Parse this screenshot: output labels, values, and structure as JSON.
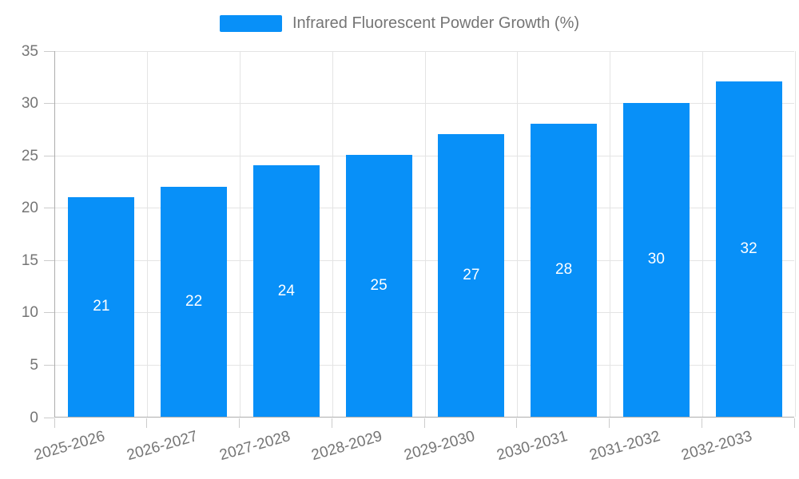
{
  "chart_data": {
    "type": "bar",
    "title": "Infrared Fluorescent Powder Growth (%)",
    "categories": [
      "2025-2026",
      "2026-2027",
      "2027-2028",
      "2028-2029",
      "2029-2030",
      "2030-2031",
      "2031-2032",
      "2032-2033"
    ],
    "values": [
      21,
      22,
      24,
      25,
      27,
      28,
      30,
      32
    ],
    "xlabel": "",
    "ylabel": "",
    "ylim": [
      0,
      35
    ],
    "yticks": [
      0,
      5,
      10,
      15,
      20,
      25,
      30,
      35
    ],
    "grid": "horizontal and vertical gridlines on",
    "legend_position": "top-center",
    "bar_value_labels": "centered inside bars"
  },
  "colors": {
    "bar_fill": "#0890f8",
    "bar_value_label": "#ffffff",
    "axis_line": "#adadad",
    "gridline": "#e4e4e4",
    "tick_mark": "#cccccc",
    "tick_text": "#757575",
    "legend_text": "#757575",
    "background": "#ffffff"
  }
}
